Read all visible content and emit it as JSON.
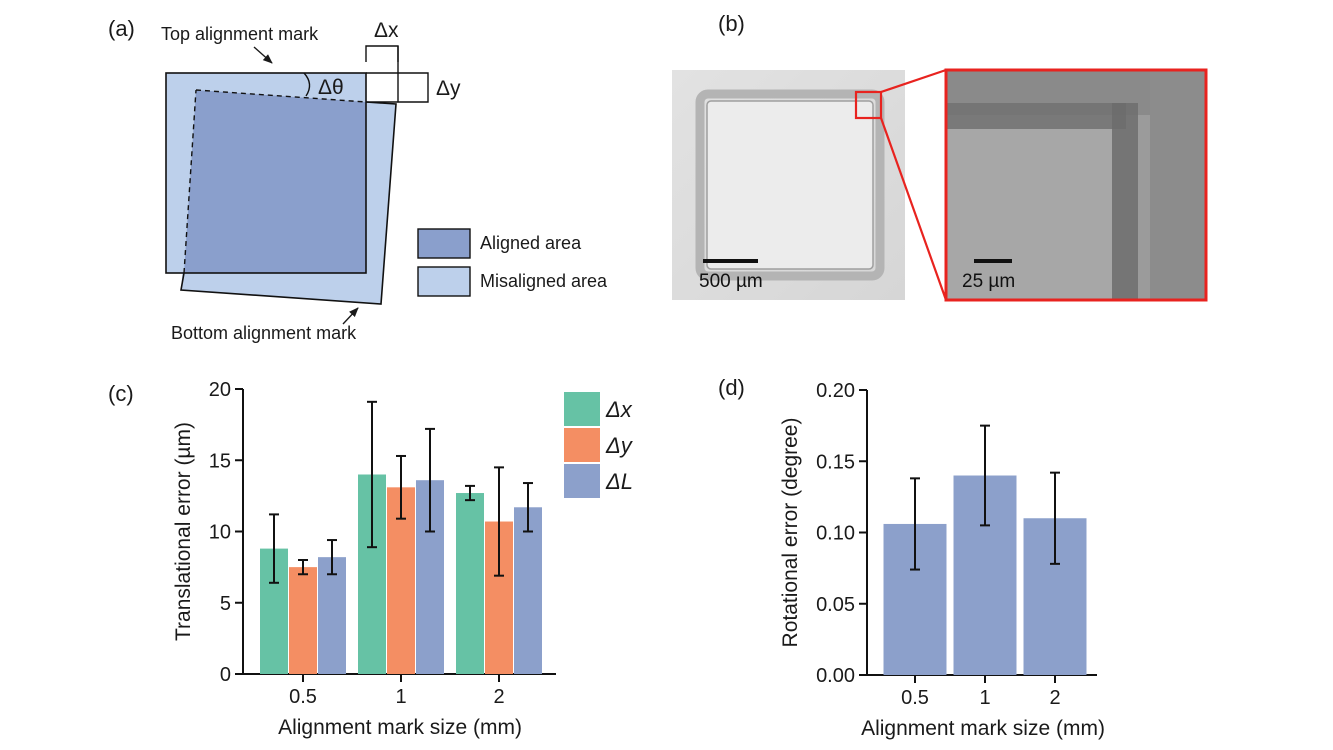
{
  "panels": {
    "a": {
      "label": "(a)",
      "top_mark_label": "Top alignment mark",
      "bottom_mark_label": "Bottom alignment mark",
      "dx_label": "Δx",
      "dy_label": "Δy",
      "dtheta_label": "Δθ",
      "legend": [
        {
          "label": "Aligned area",
          "color": "#8a9fcc"
        },
        {
          "label": "Misaligned area",
          "color": "#bdd0eb"
        }
      ]
    },
    "b": {
      "label": "(b)",
      "left_scale": "500 µm",
      "right_scale": "25 µm",
      "highlight_color": "#e8231f"
    },
    "c": {
      "label": "(c)"
    },
    "d": {
      "label": "(d)"
    }
  },
  "chart_data": [
    {
      "type": "bar",
      "panel": "c",
      "categories": [
        "0.5",
        "1",
        "2"
      ],
      "series": [
        {
          "name": "Δx",
          "color": "#66c2a5",
          "values": [
            8.8,
            14.0,
            12.7
          ],
          "errors": [
            2.4,
            5.1,
            0.5
          ]
        },
        {
          "name": "Δy",
          "color": "#f48e63",
          "values": [
            7.5,
            13.1,
            10.7
          ],
          "errors": [
            0.5,
            2.2,
            3.8
          ]
        },
        {
          "name": "ΔL",
          "color": "#8ca0cb",
          "values": [
            8.2,
            13.6,
            11.7
          ],
          "errors": [
            1.2,
            3.6,
            1.7
          ]
        }
      ],
      "xlabel": "Alignment mark size (mm)",
      "ylabel": "Translational error (µm)",
      "ylim": [
        0,
        20
      ],
      "yticks": [
        "0",
        "5",
        "10",
        "15",
        "20"
      ],
      "legend_position": "top-right"
    },
    {
      "type": "bar",
      "panel": "d",
      "categories": [
        "0.5",
        "1",
        "2"
      ],
      "series": [
        {
          "color": "#8ca0cb",
          "values": [
            0.106,
            0.14,
            0.11
          ],
          "errors": [
            0.032,
            0.035,
            0.032
          ]
        }
      ],
      "xlabel": "Alignment mark size (mm)",
      "ylabel": "Rotational error (degree)",
      "ylim": [
        0,
        0.2
      ],
      "yticks": [
        "0.00",
        "0.05",
        "0.10",
        "0.15",
        "0.20"
      ]
    }
  ]
}
